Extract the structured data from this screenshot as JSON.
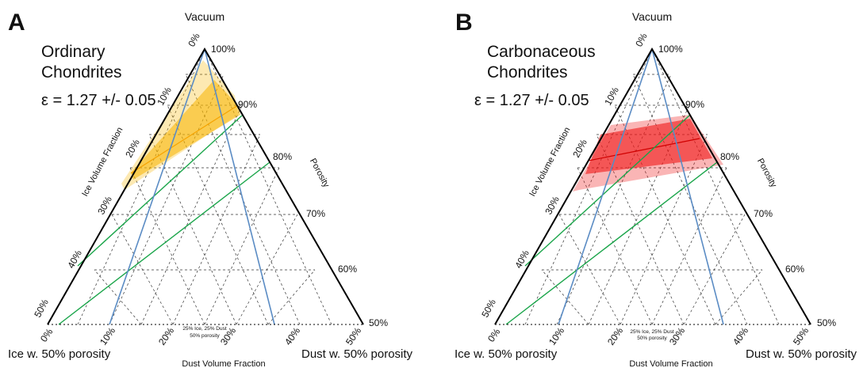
{
  "panels": [
    {
      "letter": "A",
      "title_line1": "Ordinary",
      "title_line2": "Chondrites",
      "epsilon": "ε = 1.27 +/- 0.05",
      "top_vertex": "Vacuum",
      "left_corner": "Ice w. 50% porosity",
      "right_corner": "Dust w. 50% porosity",
      "left_axis_label": "Ice Volume Fraction",
      "right_axis_label": "Porosity",
      "bottom_axis_label": "Dust  Volume Fraction",
      "center_note_line1": "25% Ice, 25% Dust",
      "center_note_line2": "50% porosity",
      "left_ticks": [
        "0%",
        "10%",
        "20%",
        "30%",
        "40%",
        "50%"
      ],
      "right_ticks": [
        "100%",
        "90%",
        "80%",
        "70%",
        "60%",
        "50%"
      ],
      "bottom_ticks": [
        "0%",
        "10%",
        "20%",
        "30%",
        "40%",
        "50%"
      ],
      "band_color": "#f7b500"
    },
    {
      "letter": "B",
      "title_line1": "Carbonaceous",
      "title_line2": "Chondrites",
      "epsilon": "ε = 1.27 +/- 0.05",
      "top_vertex": "Vacuum",
      "left_corner": "Ice w. 50% porosity",
      "right_corner": "Dust w. 50% porosity",
      "left_axis_label": "Ice Volume Fraction",
      "right_axis_label": "Porosity",
      "bottom_axis_label": "Dust  Volume Fraction",
      "center_note_line1": "25% Ice, 25% Dust",
      "center_note_line2": "50% porosity",
      "left_ticks": [
        "0%",
        "10%",
        "20%",
        "30%",
        "40%",
        "50%"
      ],
      "right_ticks": [
        "100%",
        "90%",
        "80%",
        "70%",
        "60%",
        "50%"
      ],
      "bottom_ticks": [
        "0%",
        "10%",
        "20%",
        "30%",
        "40%",
        "50%"
      ],
      "band_color": "#f01818"
    }
  ]
}
